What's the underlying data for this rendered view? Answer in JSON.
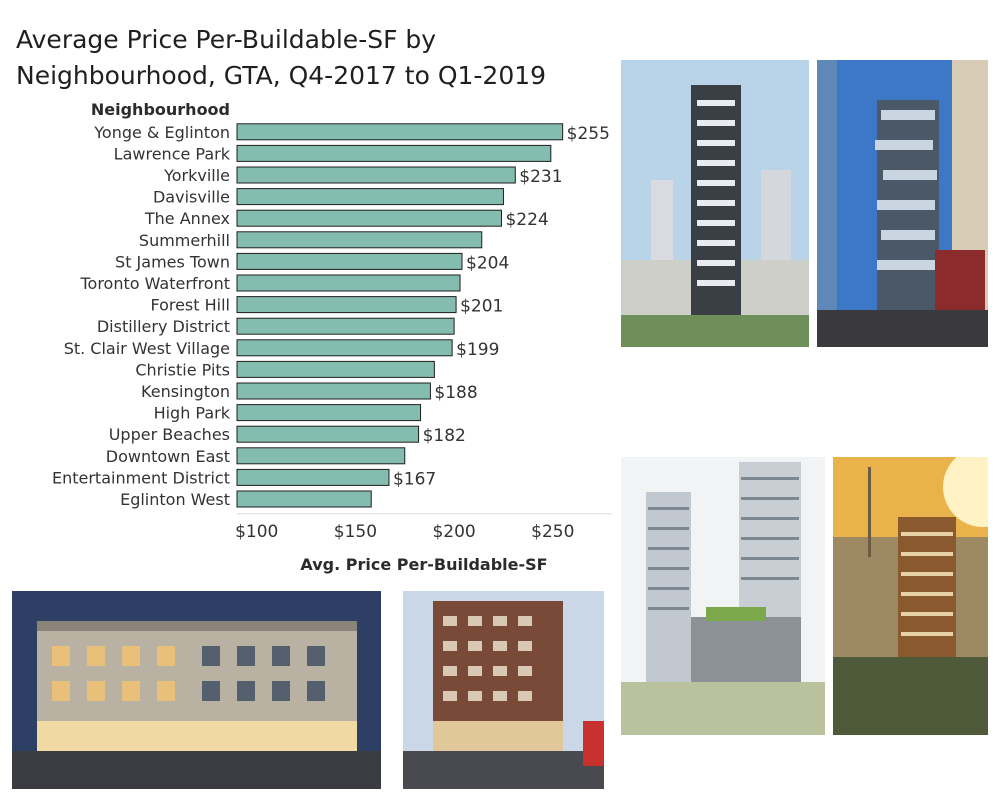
{
  "chart_data": {
    "type": "bar",
    "orientation": "horizontal",
    "title": "Average Price Per-Buildable-SF by Neighbourhood, GTA, Q4-2017 to Q1-2019",
    "row_header": "Neighbourhood",
    "xlabel": "Avg. Price Per-Buildable-SF",
    "xlim": [
      90,
      280
    ],
    "x_ticks": [
      100,
      150,
      200,
      250
    ],
    "x_tick_labels": [
      "$100",
      "$150",
      "$200",
      "$250"
    ],
    "bar_color": "#85bcb0",
    "grid": false,
    "categories": [
      "Yonge & Eglinton",
      "Lawrence Park",
      "Yorkville",
      "Davisville",
      "The Annex",
      "Summerhill",
      "St James Town",
      "Toronto Waterfront",
      "Forest Hill",
      "Distillery District",
      "St. Clair West Village",
      "Christie Pits",
      "Kensington",
      "High Park",
      "Upper Beaches",
      "Downtown East",
      "Entertainment District",
      "Eglinton West"
    ],
    "values": [
      255,
      249,
      231,
      225,
      224,
      214,
      204,
      203,
      201,
      200,
      199,
      190,
      188,
      183,
      182,
      175,
      167,
      158
    ],
    "data_labels": [
      "$255",
      "",
      "$231",
      "",
      "$224",
      "",
      "$204",
      "",
      "$201",
      "",
      "$199",
      "",
      "$188",
      "",
      "$182",
      "",
      "$167",
      ""
    ]
  }
}
